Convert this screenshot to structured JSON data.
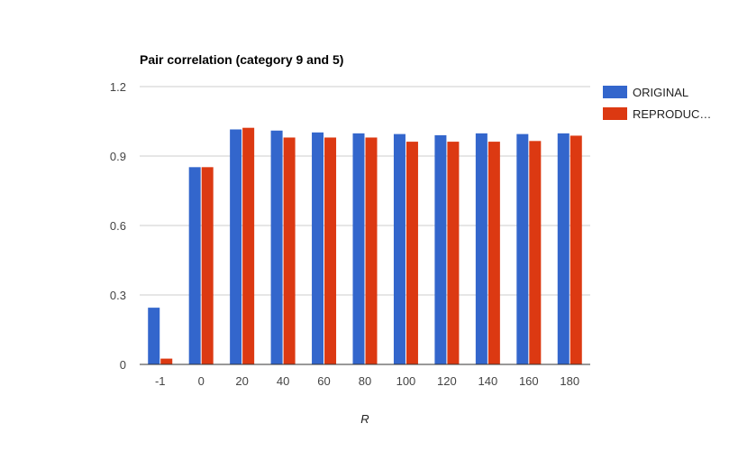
{
  "chart_data": {
    "type": "bar",
    "title": "Pair correlation (category 9 and 5)",
    "xlabel": "R",
    "ylabel": "",
    "categories": [
      "-1",
      "0",
      "20",
      "40",
      "60",
      "80",
      "100",
      "120",
      "140",
      "160",
      "180"
    ],
    "series": [
      {
        "name": "ORIGINAL",
        "color": "#3366cc",
        "values": [
          0.245,
          0.852,
          1.015,
          1.01,
          1.002,
          0.998,
          0.995,
          0.99,
          0.998,
          0.995,
          0.998
        ]
      },
      {
        "name": "REPRODUC…",
        "color": "#dc3912",
        "values": [
          0.025,
          0.852,
          1.022,
          0.98,
          0.98,
          0.98,
          0.962,
          0.962,
          0.962,
          0.965,
          0.988
        ]
      }
    ],
    "ylim": [
      0,
      1.2
    ],
    "yticks": [
      "0",
      "0.3",
      "0.6",
      "0.9",
      "1.2"
    ],
    "grid": true,
    "legend": "right"
  }
}
